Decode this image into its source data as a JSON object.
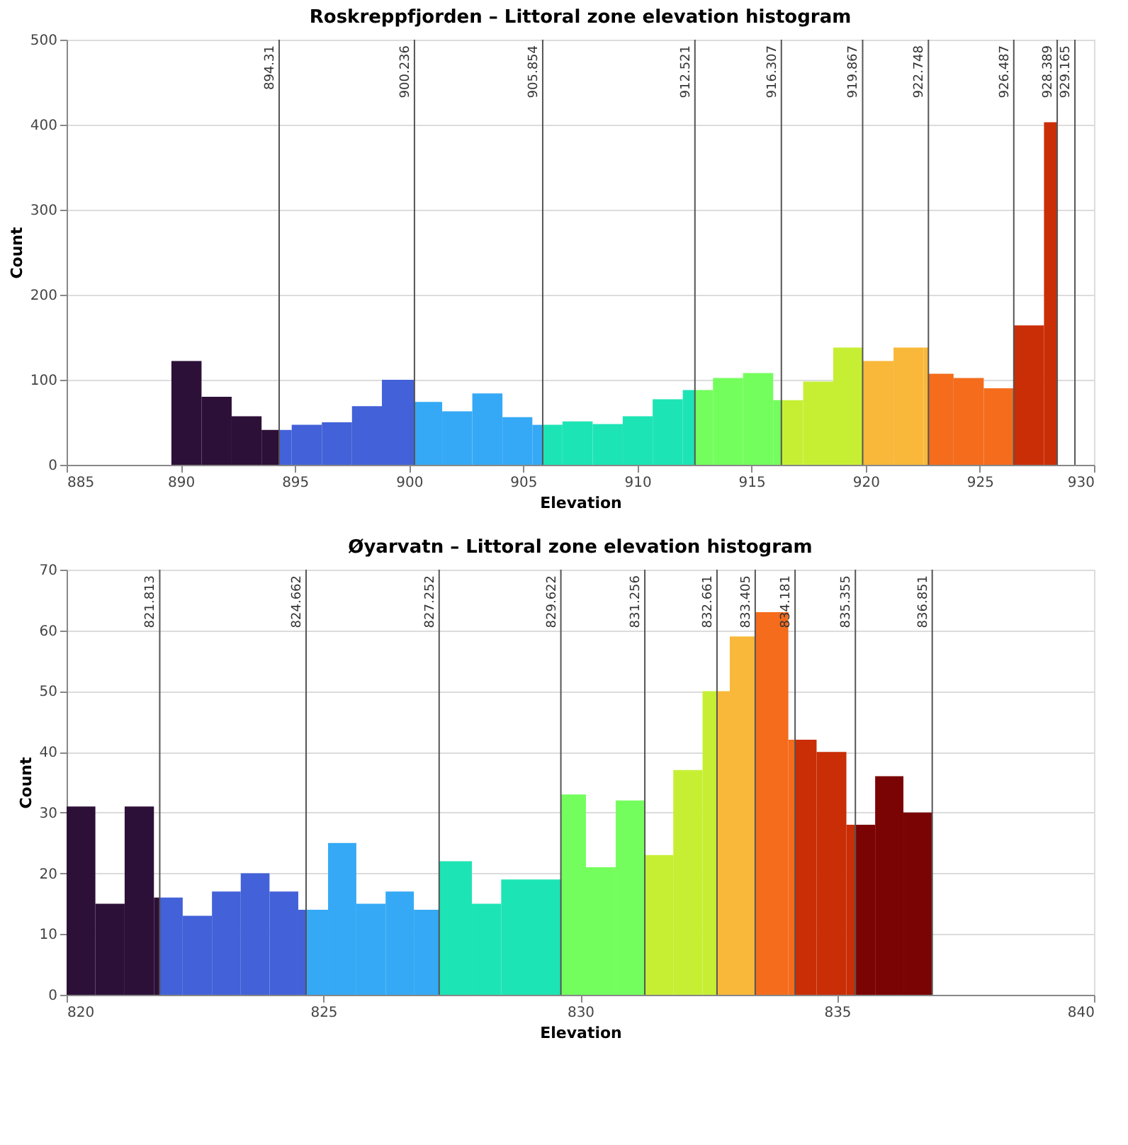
{
  "chart_data": [
    {
      "type": "histogram",
      "title": "Roskreppfjorden – Littoral zone elevation histogram",
      "xlabel": "Elevation",
      "ylabel": "Count",
      "bins": [
        889.59,
        890.91,
        892.23,
        893.54,
        894.31,
        894.86,
        896.18,
        897.5,
        898.81,
        900.236,
        901.45,
        902.77,
        904.09,
        905.4,
        905.854,
        906.72,
        908.04,
        909.36,
        910.67,
        911.99,
        912.521,
        913.31,
        914.63,
        915.95,
        916.307,
        917.26,
        918.58,
        919.867,
        921.22,
        922.54,
        922.748,
        923.85,
        925.17,
        926.487,
        927.81,
        928.389
      ],
      "values": [
        122,
        80,
        57,
        41,
        41,
        47,
        50,
        69,
        100,
        74,
        63,
        84,
        56,
        47,
        47,
        51,
        48,
        57,
        77,
        88,
        88,
        102,
        108,
        76,
        76,
        98,
        138,
        122,
        138,
        138,
        107,
        102,
        90,
        164,
        403
      ],
      "colors": [
        "#2d1038",
        "#2d1038",
        "#2d1038",
        "#2d1038",
        "#4361d8",
        "#4361d8",
        "#4361d8",
        "#4361d8",
        "#4361d8",
        "#35a9f5",
        "#35a9f5",
        "#35a9f5",
        "#35a9f5",
        "#35a9f5",
        "#1de4b5",
        "#1de4b5",
        "#1de4b5",
        "#1de4b5",
        "#1de4b5",
        "#1de4b5",
        "#74fe5d",
        "#74fe5d",
        "#74fe5d",
        "#74fe5d",
        "#c6ef34",
        "#c6ef34",
        "#c6ef34",
        "#f9b83a",
        "#f9b83a",
        "#f9b83a",
        "#f46c1c",
        "#f46c1c",
        "#f46c1c",
        "#c92e06",
        "#c92e06"
      ],
      "xlim": [
        885,
        930
      ],
      "xticks": [
        885,
        890,
        895,
        900,
        905,
        910,
        915,
        920,
        925,
        930
      ],
      "ylim": [
        0,
        500
      ],
      "yticks": [
        0,
        100,
        200,
        300,
        400,
        500
      ],
      "grid": "y",
      "ref_lines": [
        {
          "axis": "x",
          "value": 894.31,
          "label": "894.31"
        },
        {
          "axis": "x",
          "value": 900.236,
          "label": "900.236"
        },
        {
          "axis": "x",
          "value": 905.854,
          "label": "905.854"
        },
        {
          "axis": "x",
          "value": 912.521,
          "label": "912.521"
        },
        {
          "axis": "x",
          "value": 916.307,
          "label": "916.307"
        },
        {
          "axis": "x",
          "value": 919.867,
          "label": "919.867"
        },
        {
          "axis": "x",
          "value": 922.748,
          "label": "922.748"
        },
        {
          "axis": "x",
          "value": 926.487,
          "label": "926.487"
        },
        {
          "axis": "x",
          "value": 928.389,
          "label": "928.389"
        },
        {
          "axis": "x",
          "value": 929.165,
          "label": "929.165"
        }
      ]
    },
    {
      "type": "histogram",
      "title": "Øyarvatn – Littoral zone elevation histogram",
      "xlabel": "Elevation",
      "ylabel": "Count",
      "bins": [
        820.0,
        820.56,
        821.13,
        821.7,
        821.813,
        822.26,
        822.83,
        823.39,
        823.95,
        824.51,
        824.662,
        825.09,
        825.64,
        826.21,
        826.76,
        827.252,
        827.89,
        828.46,
        829.622,
        830.11,
        830.69,
        831.256,
        831.81,
        832.38,
        832.661,
        832.91,
        833.405,
        834.05,
        834.181,
        834.6,
        835.18,
        835.355,
        835.74,
        836.29,
        836.851
      ],
      "values": [
        31,
        15,
        31,
        16,
        16,
        13,
        17,
        20,
        17,
        14,
        14,
        25,
        15,
        17,
        14,
        22,
        15,
        19,
        33,
        21,
        32,
        23,
        37,
        50,
        50,
        59,
        63,
        42,
        42,
        40,
        28,
        28,
        36,
        30
      ],
      "colors": [
        "#2d1038",
        "#2d1038",
        "#2d1038",
        "#2d1038",
        "#4361d8",
        "#4361d8",
        "#4361d8",
        "#4361d8",
        "#4361d8",
        "#4361d8",
        "#35a9f5",
        "#35a9f5",
        "#35a9f5",
        "#35a9f5",
        "#35a9f5",
        "#1de4b5",
        "#1de4b5",
        "#1de4b5",
        "#74fe5d",
        "#74fe5d",
        "#74fe5d",
        "#c6ef34",
        "#c6ef34",
        "#c6ef34",
        "#f9b83a",
        "#f9b83a",
        "#f46c1c",
        "#f46c1c",
        "#c92e06",
        "#c92e06",
        "#c92e06",
        "#7a0403",
        "#7a0403",
        "#7a0403"
      ],
      "xlim": [
        820,
        840
      ],
      "xticks": [
        820,
        825,
        830,
        835,
        840
      ],
      "ylim": [
        0,
        70
      ],
      "yticks": [
        0,
        10,
        20,
        30,
        40,
        50,
        60,
        70
      ],
      "grid": "y",
      "ref_lines": [
        {
          "axis": "x",
          "value": 821.813,
          "label": "821.813"
        },
        {
          "axis": "x",
          "value": 824.662,
          "label": "824.662"
        },
        {
          "axis": "x",
          "value": 827.252,
          "label": "827.252"
        },
        {
          "axis": "x",
          "value": 829.622,
          "label": "829.622"
        },
        {
          "axis": "x",
          "value": 831.256,
          "label": "831.256"
        },
        {
          "axis": "x",
          "value": 832.661,
          "label": "832.661"
        },
        {
          "axis": "x",
          "value": 833.405,
          "label": "833.405"
        },
        {
          "axis": "x",
          "value": 834.181,
          "label": "834.181"
        },
        {
          "axis": "x",
          "value": 835.355,
          "label": "835.355"
        },
        {
          "axis": "x",
          "value": 836.851,
          "label": "836.851"
        }
      ]
    }
  ]
}
